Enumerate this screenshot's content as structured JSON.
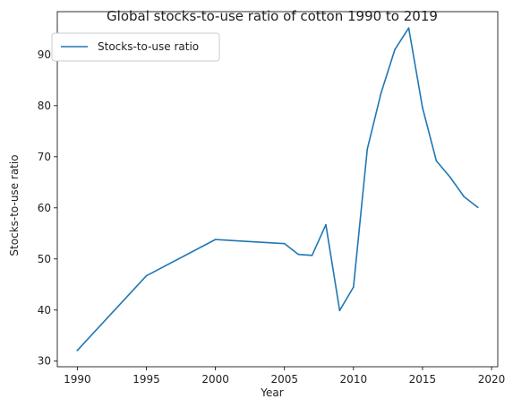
{
  "chart_data": {
    "type": "line",
    "title": "Global stocks-to-use ratio of cotton 1990 to 2019",
    "xlabel": "Year",
    "ylabel": "Stocks-to-use ratio",
    "xlim": [
      1988.55,
      2020.45
    ],
    "ylim": [
      28.9,
      98.4
    ],
    "xticks": [
      1990,
      1995,
      2000,
      2005,
      2010,
      2015,
      2020
    ],
    "yticks": [
      30,
      40,
      50,
      60,
      70,
      80,
      90
    ],
    "grid": false,
    "legend": {
      "position": "top-left",
      "entries": [
        "Stocks-to-use ratio"
      ]
    },
    "series": [
      {
        "name": "Stocks-to-use ratio",
        "color": "#1f77b4",
        "x": [
          1990,
          1995,
          2000,
          2005,
          2006,
          2007,
          2008,
          2009,
          2010,
          2011,
          2012,
          2013,
          2014,
          2015,
          2016,
          2017,
          2018,
          2019
        ],
        "y": [
          32.1,
          46.7,
          53.8,
          53.0,
          50.9,
          50.7,
          56.7,
          39.9,
          44.5,
          71.5,
          82.5,
          91.0,
          95.2,
          79.6,
          69.2,
          66.0,
          62.2,
          60.1
        ]
      }
    ]
  }
}
